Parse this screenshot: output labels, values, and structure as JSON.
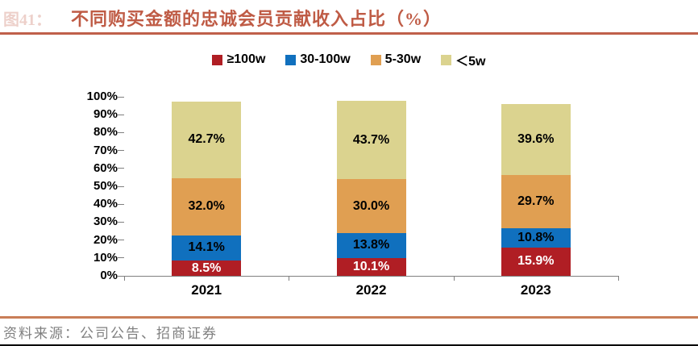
{
  "header": {
    "figure_label": "图41：",
    "title": "不同购买金额的忠诚会员贡献收入占比（%）"
  },
  "chart_data": {
    "type": "bar",
    "stacked": true,
    "title": "不同购买金额的忠诚会员贡献收入占比（%）",
    "categories": [
      "2021",
      "2022",
      "2023"
    ],
    "series": [
      {
        "name": "≥100w",
        "color": "#B01E24",
        "label_color": "#FFFFFF",
        "values": [
          8.5,
          10.1,
          15.9
        ]
      },
      {
        "name": "30-100w",
        "color": "#1070BE",
        "label_color": "#000000",
        "values": [
          14.1,
          13.8,
          10.8
        ]
      },
      {
        "name": "5-30w",
        "color": "#E09F52",
        "label_color": "#000000",
        "values": [
          32.0,
          30.0,
          29.7
        ]
      },
      {
        "name": "＜5w",
        "color": "#DBD38F",
        "label_color": "#000000",
        "values": [
          42.7,
          43.7,
          39.6
        ]
      }
    ],
    "value_suffix": "%",
    "ylim": [
      0,
      100
    ],
    "y_tick_step": 10,
    "y_tick_suffix": "%",
    "legend_position": "top",
    "grid": false
  },
  "footer": {
    "source": "资料来源：公司公告、招商证券"
  },
  "colors": {
    "title_text": "#BF5B45",
    "rule_top": "#C0604A",
    "rule_bottom": "#C97D57",
    "axis": "#808080",
    "source_text": "#7F7F7F"
  }
}
